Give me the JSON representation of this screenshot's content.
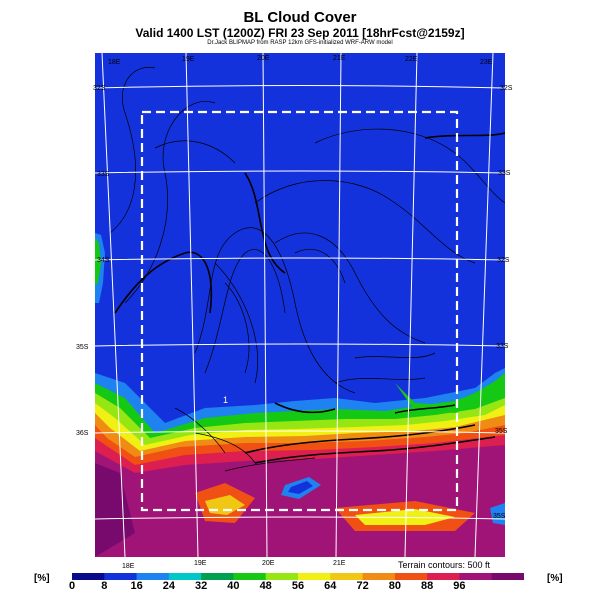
{
  "title": "BL Cloud Cover",
  "subtitle": "Valid 1400 LST (1200Z) FRI 23 Sep 2011 [18hrFcst@2159z]",
  "credit": "Dr.Jack BLIPMAP from RASP 12km GFS-initialized WRF-ARW model",
  "terrain_note": "Terrain contours: 500 ft",
  "unit_label": "[%]",
  "lon_labels_top": [
    "18E",
    "19E",
    "20E",
    "21E",
    "22E",
    "23E"
  ],
  "lon_labels_bottom": [
    "18E",
    "19E",
    "20E",
    "21E"
  ],
  "lat_labels_left": [
    "32S",
    "33S",
    "34S",
    "35S",
    "36S"
  ],
  "lat_labels_right": [
    "32S",
    "33S",
    "32S",
    "33S",
    "35S",
    "35S"
  ],
  "map_marker": "1",
  "colorbar": {
    "ticks": [
      "0",
      "8",
      "16",
      "24",
      "32",
      "40",
      "48",
      "56",
      "64",
      "72",
      "80",
      "88",
      "96"
    ],
    "colors": [
      "#0a0a8c",
      "#1432dc",
      "#1e82f0",
      "#00c8c8",
      "#00a050",
      "#14c814",
      "#96e614",
      "#f0f014",
      "#f0c814",
      "#f08c14",
      "#f05014",
      "#dc1e50",
      "#a01478",
      "#780a6e"
    ]
  },
  "colors": {
    "clear": "#1432dc",
    "low": "#1e82f0",
    "mid": "#14c814",
    "high": "#f0f014",
    "overcast": "#a01478"
  }
}
